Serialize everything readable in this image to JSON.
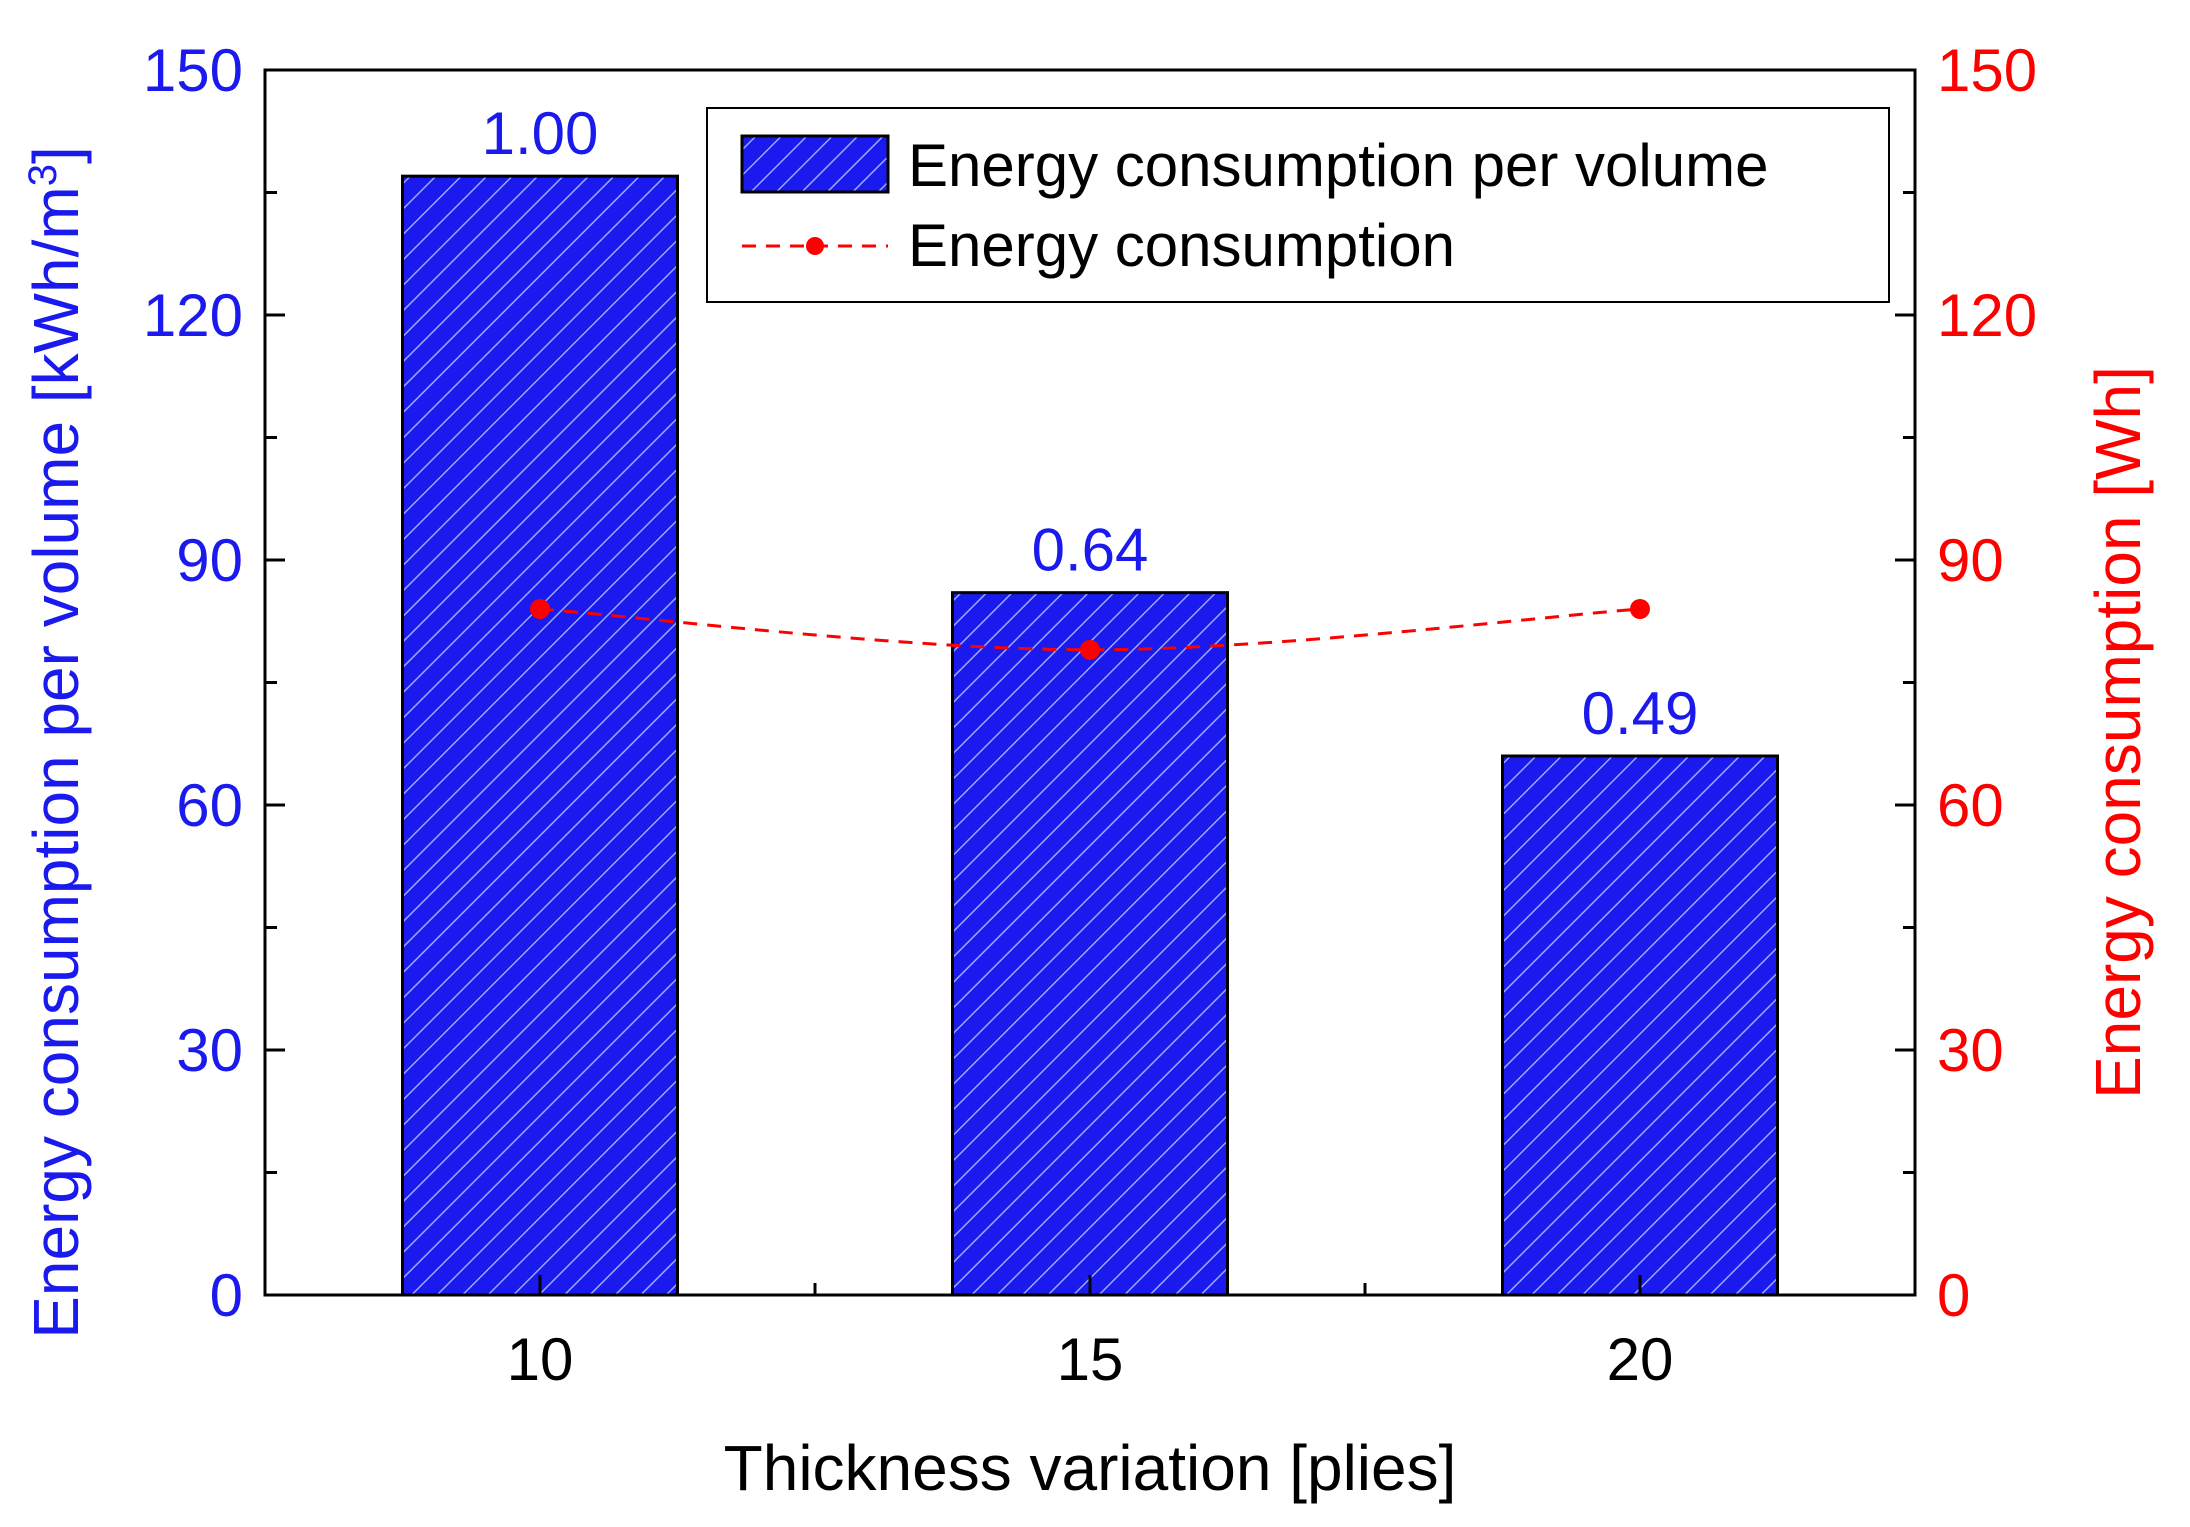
{
  "chart_data": {
    "type": "bar",
    "categories": [
      "10",
      "15",
      "20"
    ],
    "series": [
      {
        "name": "Energy consumption per volume",
        "kind": "bar",
        "axis": "left",
        "values": [
          137,
          86,
          66
        ],
        "data_labels": [
          "1.00",
          "0.64",
          "0.49"
        ],
        "color": "#1a1aee",
        "hatch": "#9aa8ff"
      },
      {
        "name": "Energy consumption",
        "kind": "line",
        "axis": "right",
        "style": "dashed",
        "values": [
          84,
          79,
          84
        ],
        "color": "#ff0000"
      }
    ],
    "xlabel": "Thickness variation [plies]",
    "ylabel_left": "Energy consumption per volume [kWh/m",
    "ylabel_left_superscript": "3",
    "ylabel_left_close": "]",
    "ylabel_right": "Energy consumption [Wh]",
    "ylim_left": [
      0,
      150
    ],
    "ylim_right": [
      0,
      150
    ],
    "yticks_left": [
      "0",
      "30",
      "60",
      "90",
      "120",
      "150"
    ],
    "yticks_right": [
      "0",
      "30",
      "60",
      "90",
      "120",
      "150"
    ],
    "left_axis_color": "#1a1aee",
    "right_axis_color": "#ff0000",
    "legend_position": "top-right",
    "grid": false
  }
}
